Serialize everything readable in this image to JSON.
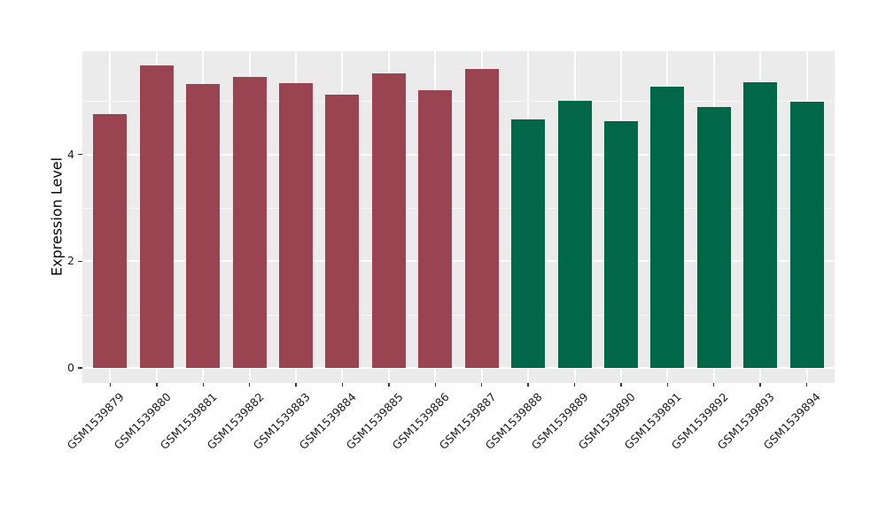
{
  "chart_data": {
    "type": "bar",
    "title": "",
    "ylabel": "Expression Level",
    "xlabel": "",
    "categories": [
      "GSM1539879",
      "GSM1539880",
      "GSM1539881",
      "GSM1539882",
      "GSM1539883",
      "GSM1539884",
      "GSM1539885",
      "GSM1539886",
      "GSM1539887",
      "GSM1539888",
      "GSM1539889",
      "GSM1539890",
      "GSM1539891",
      "GSM1539892",
      "GSM1539893",
      "GSM1539894"
    ],
    "values": [
      4.76,
      5.66,
      5.31,
      5.45,
      5.33,
      5.12,
      5.52,
      5.2,
      5.6,
      4.66,
      5.01,
      4.62,
      5.26,
      4.88,
      5.35,
      4.98
    ],
    "bar_groups": [
      1,
      1,
      1,
      1,
      1,
      1,
      1,
      1,
      1,
      2,
      2,
      2,
      2,
      2,
      2,
      2
    ],
    "group_colors": {
      "1": "#9A4452",
      "2": "#006849"
    },
    "yticks": [
      0,
      2,
      4
    ],
    "yminor": [
      1,
      3,
      5
    ],
    "ylim": [
      -0.28,
      5.93
    ],
    "grid": true,
    "legend": "none",
    "x_label_rotation": -45,
    "panel_bg": "#EBEBEB",
    "grid_color": "#FFFFFF",
    "tick_color": "#333333",
    "text_color": "#1A1A1A"
  }
}
